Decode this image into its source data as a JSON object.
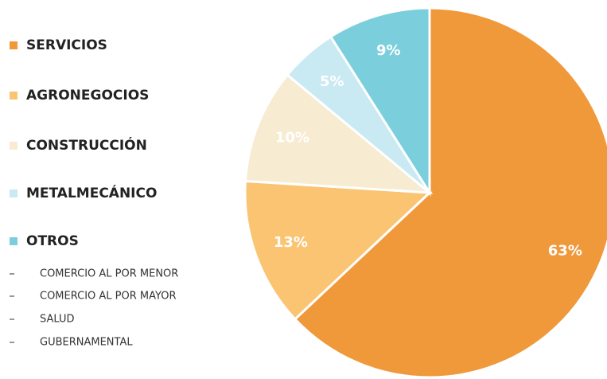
{
  "chart_data": {
    "type": "pie",
    "categories": [
      "SERVICIOS",
      "AGRONEGOCIOS",
      "CONSTRUCCIÓN",
      "METALMECÁNICO",
      "OTROS"
    ],
    "values": [
      63,
      13,
      10,
      5,
      9
    ],
    "value_labels": [
      "63%",
      "13%",
      "10%",
      "5%",
      "9%"
    ],
    "colors": [
      "#F0993A",
      "#FBC473",
      "#F7EBD1",
      "#C9E9F3",
      "#7BCFDC"
    ],
    "otros_detail": [
      "COMERCIO AL POR MENOR",
      "COMERCIO AL POR MAYOR",
      "SALUD",
      "GUBERNAMENTAL"
    ],
    "legend": "left"
  }
}
